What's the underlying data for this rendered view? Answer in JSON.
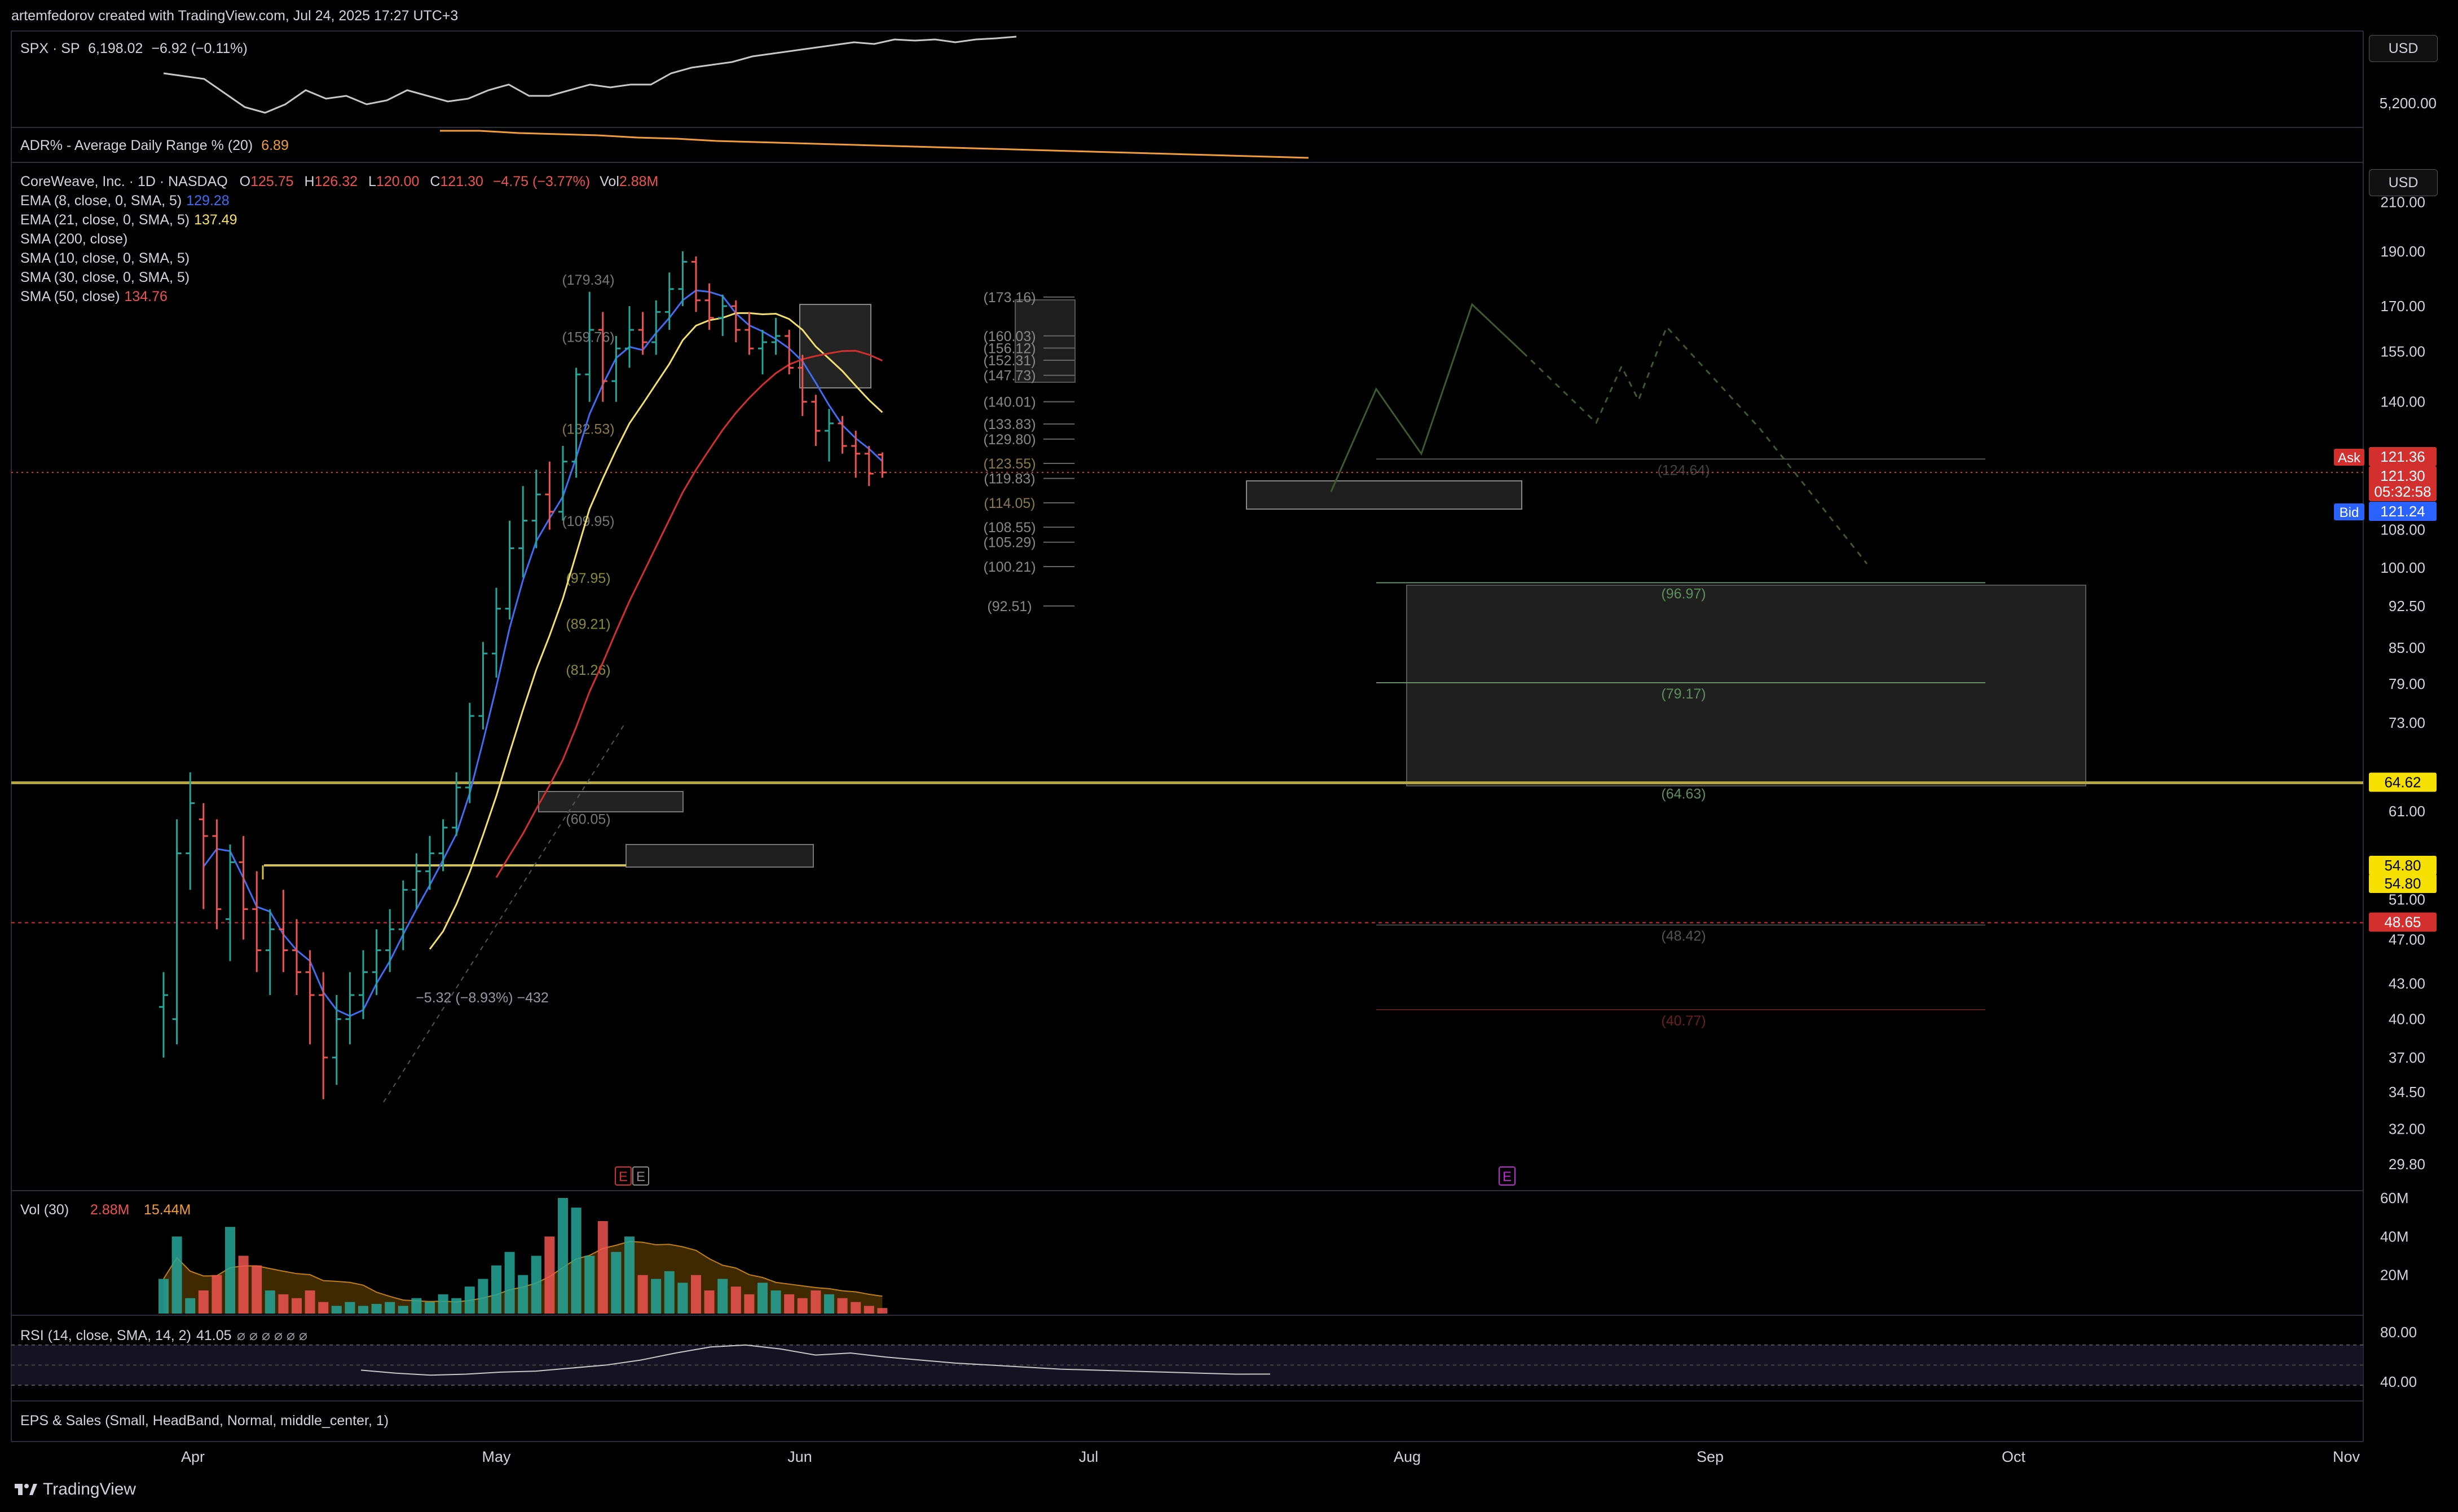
{
  "header": {
    "text": "artemfedorov created with TradingView.com, Jul 24, 2025 17:27 UTC+3"
  },
  "spx": {
    "symbol": "SPX · SP",
    "last": "6,198.02",
    "change": "−6.92 (−0.11%)",
    "axis_label": "5,200.00"
  },
  "adr": {
    "label": "ADR% - Average Daily Range % (20)",
    "value": "6.89"
  },
  "main": {
    "symbol": "CoreWeave, Inc. · 1D · NASDAQ",
    "o_label": "O",
    "o": "125.75",
    "h_label": "H",
    "h": "126.32",
    "l_label": "L",
    "l": "120.00",
    "c_label": "C",
    "c": "121.30",
    "chg": "−4.75 (−3.77%)",
    "vol_label": "Vol",
    "vol": "2.88M",
    "indicators": [
      {
        "label": "EMA (8, close, 0, SMA, 5)",
        "value": "129.28",
        "color": "#3f6df5"
      },
      {
        "label": "EMA (21, close, 0, SMA, 5)",
        "value": "137.49",
        "color": "#f5e06a"
      },
      {
        "label": "SMA (200, close)",
        "value": "",
        "color": "#d1d4dc"
      },
      {
        "label": "SMA (10, close, 0, SMA, 5)",
        "value": "",
        "color": "#d1d4dc"
      },
      {
        "label": "SMA (30, close, 0, SMA, 5)",
        "value": "",
        "color": "#d1d4dc"
      },
      {
        "label": "SMA (50, close)",
        "value": "134.76",
        "color": "#ef5350"
      }
    ]
  },
  "price_axis": {
    "currency": "USD",
    "ticks": [
      "210.00",
      "190.00",
      "170.00",
      "155.00",
      "140.00",
      "108.00",
      "100.00",
      "92.50",
      "85.00",
      "79.00",
      "73.00",
      "61.00",
      "51.00",
      "47.00",
      "43.00",
      "40.00",
      "37.00",
      "34.50",
      "32.00",
      "29.80"
    ],
    "ask_label": "Ask",
    "ask": "121.36",
    "last": "121.30",
    "countdown": "05:32:58",
    "bid_label": "Bid",
    "bid": "121.24",
    "level_yellow": "64.62",
    "level_54a": "54.80",
    "level_54b": "54.80",
    "level_red": "48.65"
  },
  "fib_left": [
    "(179.34)",
    "(159.76)",
    "(132.53)",
    "(109.95)",
    "(97.95)",
    "(89.21)",
    "(81.26)",
    "(60.05)"
  ],
  "fib_mid": [
    "(173.16)",
    "(160.03)",
    "(156.12)",
    "(152.31)",
    "(147.73)",
    "(140.01)",
    "(133.83)",
    "(129.80)",
    "(123.55)",
    "(119.83)",
    "(114.05)",
    "(108.55)",
    "(105.29)",
    "(100.21)",
    "(92.51)"
  ],
  "fib_right": [
    "(124.64)",
    "(96.97)",
    "(79.17)",
    "(64.63)",
    "(48.42)",
    "(40.77)"
  ],
  "measure_label": "−5.32 (−8.93%) −432",
  "earnings_markers": [
    "E",
    "E",
    "E"
  ],
  "volume": {
    "label": "Vol (30)",
    "value": "2.88M",
    "ma": "15.44M",
    "ticks": [
      "60M",
      "40M",
      "20M"
    ]
  },
  "rsi": {
    "label": "RSI (14, close, SMA, 14, 2)",
    "value": "41.05",
    "extra": "⌀ ⌀ ⌀ ⌀ ⌀ ⌀",
    "ticks": [
      "80.00",
      "40.00"
    ]
  },
  "eps": {
    "label": "EPS & Sales (Small, HeadBand, Normal, middle_center, 1)"
  },
  "time_axis": [
    "Apr",
    "May",
    "Jun",
    "Jul",
    "Aug",
    "Sep",
    "Oct",
    "Nov"
  ],
  "branding": {
    "name": "TradingView"
  },
  "chart_data": {
    "type": "candlestick",
    "ylim": [
      29.8,
      210
    ],
    "ohlc": [
      [
        41,
        44,
        37,
        42
      ],
      [
        40,
        60,
        38,
        56
      ],
      [
        56,
        66,
        52,
        62
      ],
      [
        60,
        62,
        50,
        58
      ],
      [
        58,
        60,
        48,
        50
      ],
      [
        49,
        57,
        45,
        55
      ],
      [
        55,
        58,
        47,
        50
      ],
      [
        50,
        54,
        44,
        46
      ],
      [
        46,
        50,
        42,
        48
      ],
      [
        48,
        52,
        44,
        46
      ],
      [
        46,
        49,
        42,
        44
      ],
      [
        44,
        46,
        38,
        42
      ],
      [
        42,
        44,
        34,
        37
      ],
      [
        37,
        42,
        35,
        40
      ],
      [
        40,
        44,
        38,
        42
      ],
      [
        42,
        46,
        40,
        44
      ],
      [
        44,
        48,
        42,
        46
      ],
      [
        46,
        50,
        44,
        48
      ],
      [
        48,
        53,
        46,
        52
      ],
      [
        52,
        56,
        50,
        54
      ],
      [
        54,
        58,
        52,
        56
      ],
      [
        56,
        60,
        54,
        59
      ],
      [
        59,
        66,
        58,
        64
      ],
      [
        64,
        76,
        62,
        74
      ],
      [
        74,
        86,
        72,
        84
      ],
      [
        84,
        96,
        80,
        92
      ],
      [
        92,
        110,
        90,
        104
      ],
      [
        104,
        118,
        98,
        110
      ],
      [
        110,
        122,
        104,
        116
      ],
      [
        116,
        124,
        108,
        112
      ],
      [
        112,
        128,
        110,
        124
      ],
      [
        124,
        150,
        120,
        148
      ],
      [
        148,
        175,
        140,
        162
      ],
      [
        162,
        168,
        140,
        146
      ],
      [
        146,
        160,
        140,
        156
      ],
      [
        156,
        170,
        150,
        162
      ],
      [
        162,
        168,
        154,
        158
      ],
      [
        158,
        172,
        154,
        168
      ],
      [
        168,
        182,
        162,
        176
      ],
      [
        176,
        190,
        170,
        186
      ],
      [
        186,
        188,
        168,
        172
      ],
      [
        172,
        178,
        162,
        166
      ],
      [
        166,
        174,
        160,
        170
      ],
      [
        170,
        172,
        158,
        162
      ],
      [
        162,
        168,
        154,
        156
      ],
      [
        156,
        162,
        148,
        158
      ],
      [
        158,
        166,
        154,
        160
      ],
      [
        160,
        162,
        148,
        150
      ],
      [
        150,
        154,
        136,
        140
      ],
      [
        140,
        142,
        128,
        132
      ],
      [
        132,
        138,
        124,
        134
      ],
      [
        134,
        136,
        126,
        128
      ],
      [
        128,
        132,
        120,
        126
      ],
      [
        126,
        128,
        118,
        121
      ],
      [
        125.75,
        126.32,
        120,
        121.3
      ]
    ],
    "volume_m": [
      18,
      40,
      8,
      12,
      20,
      45,
      30,
      25,
      12,
      10,
      8,
      12,
      6,
      4,
      6,
      4,
      5,
      6,
      4,
      8,
      6,
      10,
      8,
      14,
      18,
      25,
      32,
      20,
      30,
      40,
      60,
      55,
      30,
      48,
      32,
      40,
      20,
      18,
      22,
      16,
      20,
      12,
      18,
      14,
      10,
      16,
      12,
      10,
      8,
      12,
      10,
      8,
      6,
      4,
      2.88
    ],
    "rsi_values": [
      45,
      42,
      40,
      41,
      43,
      44,
      47,
      50,
      55,
      62,
      68,
      70,
      66,
      60,
      62,
      58,
      55,
      52,
      50,
      48,
      46,
      45,
      44,
      43,
      42,
      41,
      41.05
    ],
    "horizontal_levels": {
      "yellow": 64.62,
      "red_dashed": 48.65,
      "last": 121.3
    }
  }
}
